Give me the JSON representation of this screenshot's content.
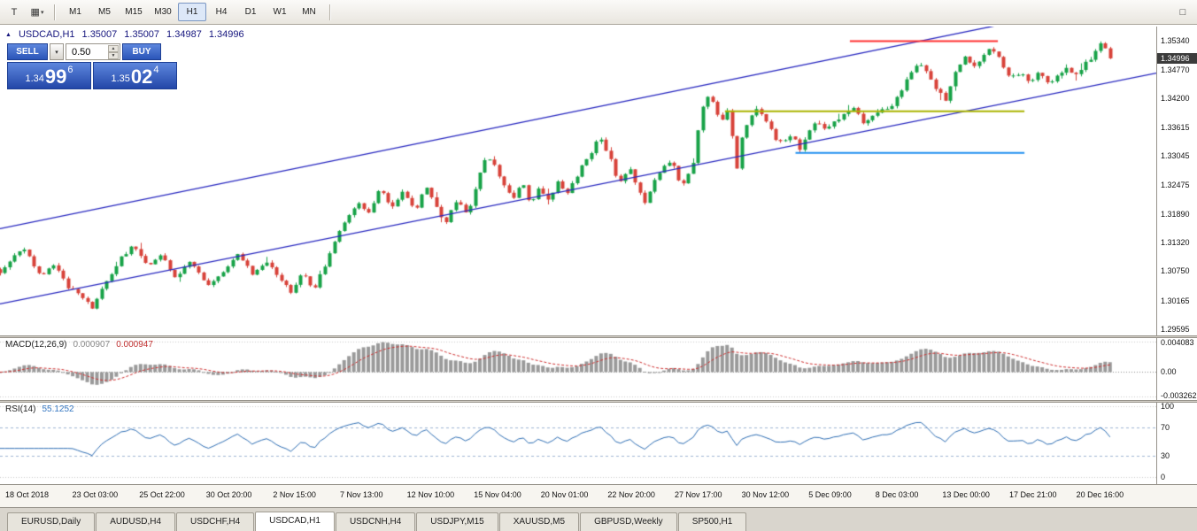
{
  "toolbar": {
    "timeframes": [
      "M1",
      "M5",
      "M15",
      "M30",
      "H1",
      "H4",
      "D1",
      "W1",
      "MN"
    ],
    "active_timeframe": "H1",
    "icons": {
      "pointer_tool": "T",
      "chart_objects": "▦",
      "caret": "▾",
      "window": "□",
      "spin_up": "▲",
      "spin_down": "▼",
      "header_marker": "▲"
    }
  },
  "chart": {
    "header": {
      "symbol": "USDCAD,H1",
      "open": "1.35007",
      "high": "1.35007",
      "low": "1.34987",
      "close": "1.34996"
    },
    "trade_panel": {
      "sell_label": "SELL",
      "buy_label": "BUY",
      "volume": "0.50",
      "sell_price_prefix": "1.34",
      "sell_price_big": "99",
      "sell_price_sup": "6",
      "buy_price_prefix": "1.35",
      "buy_price_big": "02",
      "buy_price_sup": "4"
    },
    "price_axis_ticks": [
      "1.35340",
      "1.34770",
      "1.34200",
      "1.33615",
      "1.33045",
      "1.32475",
      "1.31890",
      "1.31320",
      "1.30750",
      "1.30165",
      "1.29595"
    ],
    "current_price": "1.34996",
    "time_axis": [
      "18 Oct 2018",
      "23 Oct 03:00",
      "25 Oct 22:00",
      "30 Oct 20:00",
      "2 Nov 15:00",
      "7 Nov 13:00",
      "12 Nov 10:00",
      "15 Nov 04:00",
      "20 Nov 01:00",
      "22 Nov 20:00",
      "27 Nov 17:00",
      "30 Nov 12:00",
      "5 Dec 09:00",
      "8 Dec 03:00",
      "13 Dec 00:00",
      "17 Dec 21:00",
      "20 Dec 16:00"
    ]
  },
  "chart_data": {
    "type": "candlestick",
    "symbol": "USDCAD",
    "period": "H1",
    "ylim": [
      1.2947,
      1.3563
    ],
    "last_price": 1.34996,
    "num_candles": 230,
    "candles_span": 0.96,
    "up_color": "#18a348",
    "down_color": "#d8433a",
    "price_path": [
      [
        0.0,
        1.3075
      ],
      [
        0.01,
        1.31
      ],
      [
        0.022,
        1.3122
      ],
      [
        0.034,
        1.3065
      ],
      [
        0.047,
        1.3092
      ],
      [
        0.06,
        1.304
      ],
      [
        0.072,
        1.3022
      ],
      [
        0.08,
        1.3002
      ],
      [
        0.092,
        1.3058
      ],
      [
        0.104,
        1.3098
      ],
      [
        0.115,
        1.3128
      ],
      [
        0.128,
        1.3082
      ],
      [
        0.14,
        1.3106
      ],
      [
        0.152,
        1.3062
      ],
      [
        0.165,
        1.3098
      ],
      [
        0.179,
        1.3048
      ],
      [
        0.192,
        1.3075
      ],
      [
        0.205,
        1.3106
      ],
      [
        0.218,
        1.307
      ],
      [
        0.231,
        1.3096
      ],
      [
        0.244,
        1.3052
      ],
      [
        0.252,
        1.3035
      ],
      [
        0.262,
        1.3072
      ],
      [
        0.271,
        1.304
      ],
      [
        0.282,
        1.3092
      ],
      [
        0.295,
        1.3162
      ],
      [
        0.308,
        1.3212
      ],
      [
        0.32,
        1.3186
      ],
      [
        0.328,
        1.3246
      ],
      [
        0.338,
        1.3202
      ],
      [
        0.348,
        1.3232
      ],
      [
        0.359,
        1.3196
      ],
      [
        0.368,
        1.3242
      ],
      [
        0.378,
        1.32
      ],
      [
        0.385,
        1.3172
      ],
      [
        0.395,
        1.3216
      ],
      [
        0.405,
        1.3186
      ],
      [
        0.413,
        1.3262
      ],
      [
        0.421,
        1.3312
      ],
      [
        0.428,
        1.3282
      ],
      [
        0.436,
        1.3242
      ],
      [
        0.445,
        1.3222
      ],
      [
        0.452,
        1.3252
      ],
      [
        0.458,
        1.3206
      ],
      [
        0.466,
        1.3242
      ],
      [
        0.474,
        1.3216
      ],
      [
        0.482,
        1.3252
      ],
      [
        0.49,
        1.3226
      ],
      [
        0.498,
        1.3262
      ],
      [
        0.508,
        1.3302
      ],
      [
        0.519,
        1.3342
      ],
      [
        0.527,
        1.3302
      ],
      [
        0.535,
        1.3252
      ],
      [
        0.545,
        1.3282
      ],
      [
        0.551,
        1.3242
      ],
      [
        0.557,
        1.3212
      ],
      [
        0.565,
        1.3252
      ],
      [
        0.572,
        1.3282
      ],
      [
        0.581,
        1.3296
      ],
      [
        0.59,
        1.3242
      ],
      [
        0.599,
        1.3282
      ],
      [
        0.605,
        1.3382
      ],
      [
        0.611,
        1.3428
      ],
      [
        0.618,
        1.3402
      ],
      [
        0.625,
        1.3372
      ],
      [
        0.631,
        1.3402
      ],
      [
        0.636,
        1.3262
      ],
      [
        0.641,
        1.3342
      ],
      [
        0.648,
        1.3382
      ],
      [
        0.655,
        1.3402
      ],
      [
        0.662,
        1.3372
      ],
      [
        0.67,
        1.3342
      ],
      [
        0.678,
        1.3332
      ],
      [
        0.685,
        1.3346
      ],
      [
        0.691,
        1.3316
      ],
      [
        0.698,
        1.3352
      ],
      [
        0.706,
        1.3372
      ],
      [
        0.714,
        1.3352
      ],
      [
        0.722,
        1.3372
      ],
      [
        0.73,
        1.3392
      ],
      [
        0.738,
        1.3402
      ],
      [
        0.746,
        1.3372
      ],
      [
        0.754,
        1.3382
      ],
      [
        0.762,
        1.3396
      ],
      [
        0.77,
        1.3402
      ],
      [
        0.778,
        1.3432
      ],
      [
        0.786,
        1.3466
      ],
      [
        0.795,
        1.3492
      ],
      [
        0.803,
        1.3462
      ],
      [
        0.811,
        1.3432
      ],
      [
        0.818,
        1.3416
      ],
      [
        0.826,
        1.3472
      ],
      [
        0.834,
        1.3502
      ],
      [
        0.842,
        1.3482
      ],
      [
        0.85,
        1.3502
      ],
      [
        0.858,
        1.3522
      ],
      [
        0.866,
        1.3492
      ],
      [
        0.874,
        1.3462
      ],
      [
        0.882,
        1.3472
      ],
      [
        0.89,
        1.3452
      ],
      [
        0.898,
        1.3472
      ],
      [
        0.906,
        1.3446
      ],
      [
        0.914,
        1.3462
      ],
      [
        0.922,
        1.3482
      ],
      [
        0.93,
        1.3462
      ],
      [
        0.938,
        1.3492
      ],
      [
        0.946,
        1.3506
      ],
      [
        0.953,
        1.3536
      ],
      [
        0.96,
        1.34996
      ]
    ],
    "trendlines": [
      {
        "name": "channel-lower",
        "color": "#2828c0",
        "p1": [
          0.0,
          1.301
        ],
        "p2": [
          1.0,
          1.347
        ]
      },
      {
        "name": "channel-upper",
        "color": "#2828c0",
        "p1": [
          0.0,
          1.316
        ],
        "p2": [
          1.0,
          1.363
        ]
      }
    ],
    "hlines": [
      {
        "name": "resistance-line",
        "color": "#ff3030",
        "price": 1.3534,
        "x1": 0.735,
        "x2": 0.863
      },
      {
        "name": "pivot-line",
        "color": "#aab400",
        "price": 1.3394,
        "x1": 0.627,
        "x2": 0.886
      },
      {
        "name": "support-line",
        "color": "#2090f0",
        "price": 1.3311,
        "x1": 0.688,
        "x2": 0.886
      }
    ]
  },
  "macd": {
    "label": "MACD(12,26,9)",
    "value_main": "0.000907",
    "value_signal": "0.000947",
    "axis_labels": [
      "0.004083",
      "0.00",
      "-0.003262"
    ],
    "axis_top_value": 0.004083,
    "axis_bottom_value": -0.003262,
    "params": [
      12,
      26,
      9
    ],
    "histogram_color": "#9a9a9a",
    "signal_color": "#d03030"
  },
  "rsi": {
    "label": "RSI(14)",
    "value": "55.1252",
    "axis_labels": [
      "100",
      "70",
      "30",
      "0"
    ],
    "levels": [
      70,
      30
    ],
    "period": 14,
    "line_color": "#2f6fb5",
    "level_color": "#9fb6d4"
  },
  "tabs": {
    "items": [
      "EURUSD,Daily",
      "AUDUSD,H4",
      "USDCHF,H4",
      "USDCAD,H1",
      "USDCNH,H4",
      "USDJPY,M15",
      "XAUUSD,M5",
      "GBPUSD,Weekly",
      "SP500,H1"
    ],
    "active": "USDCAD,H1"
  }
}
